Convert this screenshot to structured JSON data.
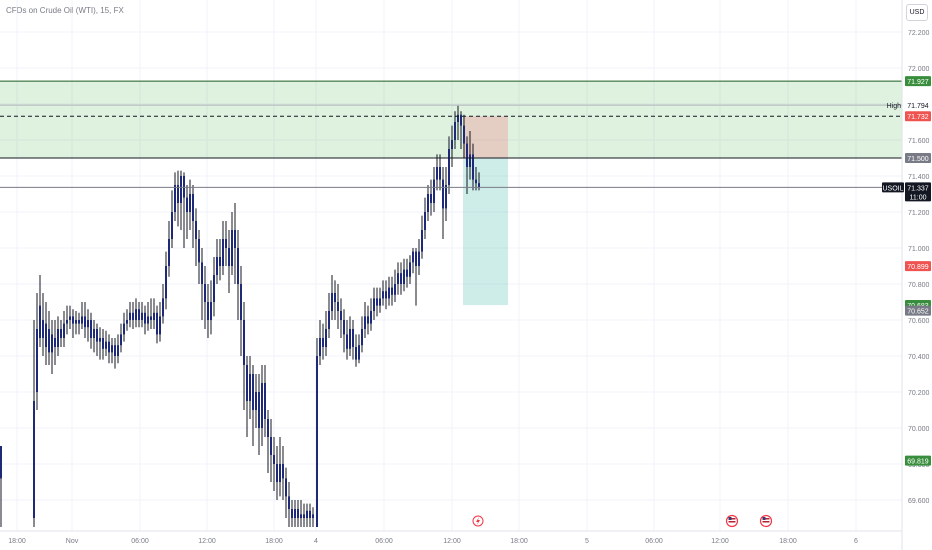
{
  "title": "CFDs on Crude Oil (WTI), 15, FX",
  "currency": "USD",
  "chart_data": {
    "type": "candlestick",
    "title": "CFDs on Crude Oil (WTI), 15, FX",
    "symbol": "USOIL",
    "price_axis": {
      "range": [
        69.45,
        72.3
      ],
      "ticks": [
        "72.200",
        "72.000",
        "71.800",
        "71.600",
        "71.400",
        "71.200",
        "71.000",
        "70.800",
        "70.600",
        "70.400",
        "70.200",
        "70.000",
        "69.800",
        "69.600"
      ]
    },
    "time_axis": {
      "ticks": [
        {
          "label": "18:00",
          "x": 17
        },
        {
          "label": "Nov",
          "x": 72
        },
        {
          "label": "06:00",
          "x": 140
        },
        {
          "label": "12:00",
          "x": 207
        },
        {
          "label": "18:00",
          "x": 274
        },
        {
          "label": "4",
          "x": 316
        },
        {
          "label": "06:00",
          "x": 384
        },
        {
          "label": "12:00",
          "x": 452
        },
        {
          "label": "18:00",
          "x": 519
        },
        {
          "label": "5",
          "x": 587
        },
        {
          "label": "06:00",
          "x": 654
        },
        {
          "label": "12:00",
          "x": 720
        },
        {
          "label": "18:00",
          "x": 788
        },
        {
          "label": "6",
          "x": 856
        }
      ]
    },
    "zone": {
      "top": 71.927,
      "bottom": 71.5,
      "color": "#4caf50"
    },
    "horizontal_lines": [
      {
        "price": 71.927,
        "style": "solid",
        "color": "#1b5e20"
      },
      {
        "price": 71.794,
        "style": "solid",
        "color": "#b2b5be"
      },
      {
        "price": 71.732,
        "style": "dashed",
        "color": "#131722"
      },
      {
        "price": 71.5,
        "style": "solid",
        "color": "#131722"
      },
      {
        "price": 71.337,
        "style": "solid",
        "color": "#787b86"
      }
    ],
    "position": {
      "entry": 71.5,
      "stop": 71.732,
      "target": 70.683,
      "x_start": 463,
      "x_end": 508
    },
    "price_labels": [
      {
        "price": 71.927,
        "text": "71.927",
        "bg": "#388e3c",
        "color": "#ffffff"
      },
      {
        "price": 71.794,
        "text": "71.794",
        "bg": "#ffffff",
        "color": "#131722",
        "tag": "High"
      },
      {
        "price": 71.732,
        "text": "71.732",
        "bg": "#ef5350",
        "color": "#ffffff"
      },
      {
        "price": 71.5,
        "text": "71.500",
        "bg": "#787b86",
        "color": "#ffffff"
      },
      {
        "price": 71.337,
        "text": "71.337",
        "bg": "#131722",
        "color": "#ffffff",
        "tag": "USOIL",
        "sub": "11:00"
      },
      {
        "price": 70.899,
        "text": "70.899",
        "bg": "#ef5350",
        "color": "#ffffff"
      },
      {
        "price": 70.683,
        "text": "70.683",
        "bg": "#388e3c",
        "color": "#ffffff"
      },
      {
        "price": 70.652,
        "text": "70.652",
        "bg": "#787b86",
        "color": "#ffffff"
      },
      {
        "price": 69.819,
        "text": "69.819",
        "bg": "#388e3c",
        "color": "#ffffff"
      }
    ],
    "event_icons": [
      {
        "x": 478,
        "kind": "flash"
      },
      {
        "x": 732,
        "kind": "flag"
      },
      {
        "x": 766,
        "kind": "flag"
      }
    ],
    "candles": [
      [
        1,
        69.72,
        69.9,
        69.85,
        69.45
      ],
      [
        34,
        69.5,
        70.15,
        70.6,
        69.45
      ],
      [
        37,
        70.2,
        70.55,
        70.75,
        70.1
      ],
      [
        40,
        70.5,
        70.68,
        70.85,
        70.45
      ],
      [
        43,
        70.6,
        70.5,
        70.75,
        70.4
      ],
      [
        46,
        70.45,
        70.58,
        70.7,
        70.35
      ],
      [
        49,
        70.55,
        70.42,
        70.65,
        70.35
      ],
      [
        52,
        70.42,
        70.52,
        70.6,
        70.3
      ],
      [
        55,
        70.5,
        70.45,
        70.6,
        70.35
      ],
      [
        58,
        70.45,
        70.55,
        70.62,
        70.4
      ],
      [
        61,
        70.55,
        70.5,
        70.6,
        70.45
      ],
      [
        64,
        70.5,
        70.58,
        70.65,
        70.45
      ],
      [
        67,
        70.58,
        70.6,
        70.68,
        70.52
      ],
      [
        70,
        70.6,
        70.62,
        70.68,
        70.55
      ],
      [
        73,
        70.62,
        70.58,
        70.66,
        70.5
      ],
      [
        76,
        70.58,
        70.6,
        70.65,
        70.52
      ],
      [
        79,
        70.6,
        70.58,
        70.64,
        70.52
      ],
      [
        82,
        70.58,
        70.62,
        70.7,
        70.55
      ],
      [
        85,
        70.62,
        70.56,
        70.7,
        70.5
      ],
      [
        88,
        70.56,
        70.6,
        70.66,
        70.48
      ],
      [
        91,
        70.6,
        70.5,
        70.64,
        70.44
      ],
      [
        94,
        70.5,
        70.55,
        70.6,
        70.42
      ],
      [
        97,
        70.55,
        70.48,
        70.58,
        70.4
      ],
      [
        100,
        70.48,
        70.5,
        70.56,
        70.38
      ],
      [
        103,
        70.5,
        70.44,
        70.55,
        70.38
      ],
      [
        106,
        70.44,
        70.48,
        70.54,
        70.4
      ],
      [
        109,
        70.48,
        70.42,
        70.52,
        70.36
      ],
      [
        112,
        70.42,
        70.46,
        70.5,
        70.36
      ],
      [
        115,
        70.46,
        70.4,
        70.5,
        70.33
      ],
      [
        118,
        70.4,
        70.46,
        70.52,
        70.36
      ],
      [
        121,
        70.46,
        70.52,
        70.58,
        70.42
      ],
      [
        124,
        70.52,
        70.58,
        70.64,
        70.48
      ],
      [
        127,
        70.58,
        70.6,
        70.66,
        70.54
      ],
      [
        130,
        70.6,
        70.64,
        70.7,
        70.56
      ],
      [
        133,
        70.64,
        70.6,
        70.7,
        70.55
      ],
      [
        136,
        70.6,
        70.66,
        70.72,
        70.56
      ],
      [
        139,
        70.66,
        70.6,
        70.7,
        70.56
      ],
      [
        142,
        70.6,
        70.64,
        70.7,
        70.56
      ],
      [
        145,
        70.64,
        70.58,
        70.68,
        70.52
      ],
      [
        148,
        70.58,
        70.62,
        70.7,
        70.54
      ],
      [
        151,
        70.62,
        70.6,
        70.72,
        70.55
      ],
      [
        154,
        70.6,
        70.64,
        70.72,
        70.55
      ],
      [
        157,
        70.64,
        70.52,
        70.68,
        70.47
      ],
      [
        160,
        70.52,
        70.62,
        70.7,
        70.48
      ],
      [
        163,
        70.62,
        70.72,
        70.8,
        70.58
      ],
      [
        166,
        70.72,
        70.9,
        70.98,
        70.66
      ],
      [
        169,
        70.9,
        71.05,
        71.15,
        70.84
      ],
      [
        172,
        71.05,
        71.2,
        71.32,
        71.0
      ],
      [
        175,
        71.2,
        71.35,
        71.42,
        71.15
      ],
      [
        178,
        71.35,
        71.25,
        71.43,
        71.12
      ],
      [
        181,
        71.25,
        71.4,
        71.43,
        71.1
      ],
      [
        184,
        71.4,
        71.28,
        71.42,
        71.0
      ],
      [
        187,
        71.28,
        71.2,
        71.35,
        71.05
      ],
      [
        190,
        71.2,
        71.3,
        71.38,
        71.1
      ],
      [
        193,
        71.3,
        71.15,
        71.35,
        71.0
      ],
      [
        196,
        71.15,
        71.05,
        71.22,
        70.9
      ],
      [
        199,
        71.05,
        70.92,
        71.1,
        70.8
      ],
      [
        202,
        70.92,
        70.8,
        71.0,
        70.6
      ],
      [
        205,
        70.8,
        70.7,
        70.9,
        70.55
      ],
      [
        208,
        70.7,
        70.6,
        70.8,
        70.5
      ],
      [
        211,
        70.6,
        70.7,
        70.82,
        70.52
      ],
      [
        214,
        70.7,
        70.85,
        70.95,
        70.62
      ],
      [
        217,
        70.85,
        70.95,
        71.05,
        70.8
      ],
      [
        220,
        70.95,
        70.9,
        71.05,
        70.82
      ],
      [
        223,
        70.9,
        71.05,
        71.15,
        70.85
      ],
      [
        226,
        71.05,
        71.0,
        71.15,
        70.9
      ],
      [
        229,
        71.0,
        70.9,
        71.1,
        70.75
      ],
      [
        232,
        70.9,
        71.1,
        71.2,
        70.85
      ],
      [
        235,
        71.1,
        71.0,
        71.25,
        70.8
      ],
      [
        238,
        71.0,
        70.8,
        71.1,
        70.6
      ],
      [
        241,
        70.8,
        70.6,
        70.9,
        70.4
      ],
      [
        244,
        70.6,
        70.35,
        70.7,
        70.1
      ],
      [
        247,
        70.35,
        70.15,
        70.4,
        69.95
      ],
      [
        250,
        70.15,
        70.3,
        70.4,
        70.05
      ],
      [
        253,
        70.3,
        70.1,
        70.35,
        69.9
      ],
      [
        256,
        70.1,
        70.2,
        70.3,
        70.0
      ],
      [
        259,
        70.2,
        70.0,
        70.3,
        69.85
      ],
      [
        262,
        70.0,
        70.25,
        70.35,
        69.9
      ],
      [
        265,
        70.25,
        70.05,
        70.35,
        69.95
      ],
      [
        268,
        70.05,
        69.95,
        70.1,
        69.75
      ],
      [
        271,
        69.95,
        69.85,
        70.05,
        69.7
      ],
      [
        274,
        69.85,
        69.8,
        69.95,
        69.65
      ],
      [
        277,
        69.8,
        69.7,
        69.9,
        69.6
      ],
      [
        280,
        69.7,
        69.8,
        69.95,
        69.62
      ],
      [
        283,
        69.8,
        69.72,
        69.9,
        69.6
      ],
      [
        286,
        69.72,
        69.62,
        69.78,
        69.5
      ],
      [
        289,
        69.62,
        69.55,
        69.7,
        69.45
      ],
      [
        292,
        69.55,
        69.5,
        69.6,
        69.45
      ],
      [
        295,
        69.5,
        69.55,
        69.6,
        69.45
      ],
      [
        298,
        69.55,
        69.5,
        69.6,
        69.45
      ],
      [
        301,
        69.5,
        69.52,
        69.6,
        69.45
      ],
      [
        304,
        69.52,
        69.5,
        69.58,
        69.45
      ],
      [
        307,
        69.5,
        69.54,
        69.58,
        69.45
      ],
      [
        310,
        69.54,
        69.5,
        69.58,
        69.45
      ],
      [
        313,
        69.5,
        69.52,
        69.56,
        69.45
      ],
      [
        317,
        69.45,
        70.4,
        70.5,
        69.45
      ],
      [
        320,
        70.4,
        70.5,
        70.6,
        70.35
      ],
      [
        323,
        70.5,
        70.45,
        70.58,
        70.38
      ],
      [
        326,
        70.45,
        70.55,
        70.65,
        70.4
      ],
      [
        329,
        70.55,
        70.65,
        70.75,
        70.5
      ],
      [
        332,
        70.65,
        70.75,
        70.85,
        70.6
      ],
      [
        335,
        70.75,
        70.7,
        70.82,
        70.6
      ],
      [
        338,
        70.7,
        70.65,
        70.8,
        70.55
      ],
      [
        341,
        70.65,
        70.6,
        70.72,
        70.5
      ],
      [
        344,
        70.6,
        70.52,
        70.66,
        70.42
      ],
      [
        347,
        70.52,
        70.44,
        70.6,
        70.38
      ],
      [
        350,
        70.44,
        70.55,
        70.62,
        70.4
      ],
      [
        353,
        70.55,
        70.45,
        70.6,
        70.38
      ],
      [
        356,
        70.45,
        70.38,
        70.52,
        70.34
      ],
      [
        359,
        70.38,
        70.46,
        70.52,
        70.36
      ],
      [
        362,
        70.46,
        70.55,
        70.62,
        70.42
      ],
      [
        365,
        70.55,
        70.62,
        70.7,
        70.5
      ],
      [
        368,
        70.62,
        70.58,
        70.68,
        70.52
      ],
      [
        371,
        70.58,
        70.65,
        70.72,
        70.54
      ],
      [
        374,
        70.65,
        70.72,
        70.78,
        70.6
      ],
      [
        377,
        70.72,
        70.68,
        70.78,
        70.62
      ],
      [
        380,
        70.68,
        70.72,
        70.78,
        70.64
      ],
      [
        383,
        70.72,
        70.76,
        70.82,
        70.68
      ],
      [
        386,
        70.76,
        70.72,
        70.82,
        70.66
      ],
      [
        389,
        70.72,
        70.78,
        70.84,
        70.68
      ],
      [
        392,
        70.78,
        70.74,
        70.84,
        70.68
      ],
      [
        395,
        70.74,
        70.8,
        70.88,
        70.7
      ],
      [
        398,
        70.8,
        70.86,
        70.92,
        70.74
      ],
      [
        401,
        70.86,
        70.8,
        70.92,
        70.74
      ],
      [
        404,
        70.8,
        70.88,
        70.94,
        70.76
      ],
      [
        407,
        70.88,
        70.84,
        70.94,
        70.78
      ],
      [
        410,
        70.84,
        70.92,
        70.96,
        70.8
      ],
      [
        413,
        70.92,
        70.98,
        71.0,
        70.86
      ],
      [
        416,
        70.98,
        70.9,
        71.0,
        70.68
      ],
      [
        419,
        70.9,
        70.98,
        71.05,
        70.85
      ],
      [
        422,
        70.98,
        71.1,
        71.18,
        70.94
      ],
      [
        425,
        71.1,
        71.2,
        71.28,
        71.05
      ],
      [
        428,
        71.2,
        71.3,
        71.35,
        71.15
      ],
      [
        431,
        71.3,
        71.25,
        71.38,
        71.18
      ],
      [
        434,
        71.25,
        71.38,
        71.45,
        71.2
      ],
      [
        437,
        71.38,
        71.45,
        71.52,
        71.32
      ],
      [
        440,
        71.45,
        71.38,
        71.52,
        71.32
      ],
      [
        443,
        71.38,
        71.22,
        71.45,
        71.05
      ],
      [
        446,
        71.22,
        71.35,
        71.45,
        71.15
      ],
      [
        449,
        71.35,
        71.55,
        71.62,
        71.3
      ],
      [
        452,
        71.55,
        71.6,
        71.68,
        71.45
      ],
      [
        455,
        71.6,
        71.7,
        71.76,
        71.55
      ],
      [
        458,
        71.7,
        71.74,
        71.79,
        71.6
      ],
      [
        461,
        71.74,
        71.68,
        71.76,
        71.55
      ],
      [
        464,
        71.68,
        71.58,
        71.74,
        71.5
      ],
      [
        467,
        71.58,
        71.45,
        71.62,
        71.3
      ],
      [
        470,
        71.45,
        71.52,
        71.65,
        71.38
      ],
      [
        473,
        71.52,
        71.38,
        71.58,
        71.32
      ],
      [
        476,
        71.38,
        71.36,
        71.45,
        71.32
      ],
      [
        479,
        71.36,
        71.337,
        71.42,
        71.32
      ]
    ]
  }
}
